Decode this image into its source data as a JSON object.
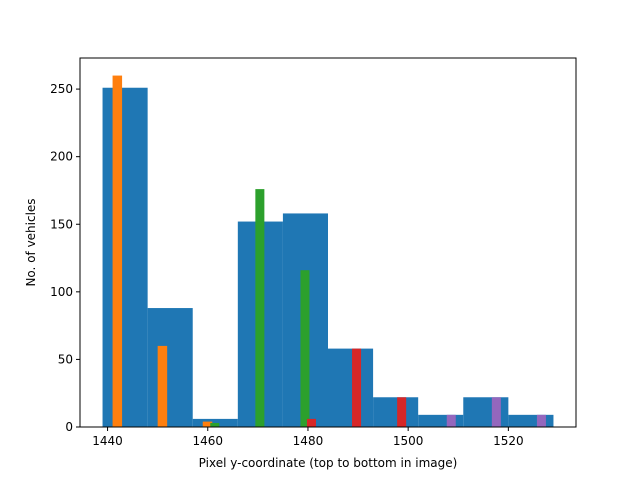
{
  "chart_data": {
    "type": "bar",
    "title": "",
    "xlabel": "Pixel y-coordinate (top to bottom in image)",
    "ylabel": "No. of vehicles",
    "xlim": [
      1434.5,
      1533.5
    ],
    "ylim": [
      0,
      273
    ],
    "xticks": [
      1440,
      1460,
      1480,
      1500,
      1520
    ],
    "yticks": [
      0,
      50,
      100,
      150,
      200,
      250
    ],
    "grid": false,
    "legend": "none",
    "series": [
      {
        "color": "#1f77b4",
        "bars": [
          {
            "x0": 1439,
            "x1": 1448,
            "value": 251
          },
          {
            "x0": 1448,
            "x1": 1457,
            "value": 88
          },
          {
            "x0": 1457,
            "x1": 1466,
            "value": 6
          },
          {
            "x0": 1466,
            "x1": 1475,
            "value": 152
          },
          {
            "x0": 1475,
            "x1": 1484,
            "value": 158
          },
          {
            "x0": 1484,
            "x1": 1493,
            "value": 58
          },
          {
            "x0": 1493,
            "x1": 1502,
            "value": 22
          },
          {
            "x0": 1502,
            "x1": 1511,
            "value": 9
          },
          {
            "x0": 1511,
            "x1": 1520,
            "value": 22
          },
          {
            "x0": 1520,
            "x1": 1529,
            "value": 9
          }
        ]
      },
      {
        "color": "#ff7f0e",
        "bars": [
          {
            "x0": 1441,
            "x1": 1442.9,
            "value": 260
          },
          {
            "x0": 1450,
            "x1": 1451.9,
            "value": 60
          },
          {
            "x0": 1459,
            "x1": 1460.9,
            "value": 4
          }
        ]
      },
      {
        "color": "#2ca02c",
        "bars": [
          {
            "x0": 1460.5,
            "x1": 1462.3,
            "value": 3
          },
          {
            "x0": 1469.5,
            "x1": 1471.3,
            "value": 176
          },
          {
            "x0": 1478.5,
            "x1": 1480.3,
            "value": 116
          }
        ]
      },
      {
        "color": "#d62728",
        "bars": [
          {
            "x0": 1479.8,
            "x1": 1481.6,
            "value": 6
          },
          {
            "x0": 1488.8,
            "x1": 1490.6,
            "value": 58
          },
          {
            "x0": 1497.8,
            "x1": 1499.6,
            "value": 22
          }
        ]
      },
      {
        "color": "#9467bd",
        "bars": [
          {
            "x0": 1507.7,
            "x1": 1509.5,
            "value": 9
          },
          {
            "x0": 1516.7,
            "x1": 1518.5,
            "value": 22
          },
          {
            "x0": 1525.7,
            "x1": 1527.5,
            "value": 9
          }
        ]
      }
    ]
  }
}
